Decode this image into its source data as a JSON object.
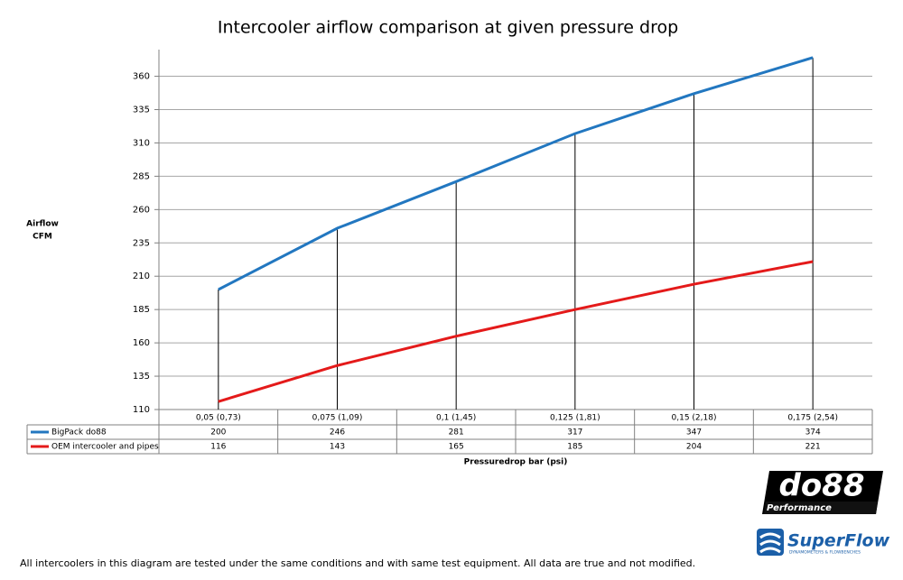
{
  "chart_data": {
    "type": "line",
    "title": "Intercooler airflow comparison at given pressure drop",
    "y_label": [
      "Airflow",
      "CFM"
    ],
    "x_label": "Pressuredrop bar (psi)",
    "categories": [
      "0,05 (0,73)",
      "0,075 (1,09)",
      "0,1 (1,45)",
      "0,125 (1,81)",
      "0,15 (2,18)",
      "0,175 (2,54)"
    ],
    "series": [
      {
        "name": "BigPack do88",
        "color": "#2277c0",
        "values": [
          200,
          246,
          281,
          317,
          347,
          374
        ]
      },
      {
        "name": "OEM intercooler and pipes",
        "color": "#e41a1a",
        "values": [
          116,
          143,
          165,
          185,
          204,
          221
        ]
      }
    ],
    "ylim": [
      110,
      380
    ],
    "yticks": [
      110,
      135,
      160,
      185,
      210,
      235,
      260,
      285,
      310,
      335,
      360
    ],
    "grid": true,
    "drop_lines": true
  },
  "footnote": "All intercoolers in this diagram are tested under the same conditions and with same test equipment. All data are true and not modified.",
  "logos": {
    "do88": "do88",
    "do88_sub": "Performance",
    "superflow": "SuperFlow",
    "superflow_sub": "DYNAMOMETERS & FLOWBENCHES"
  }
}
